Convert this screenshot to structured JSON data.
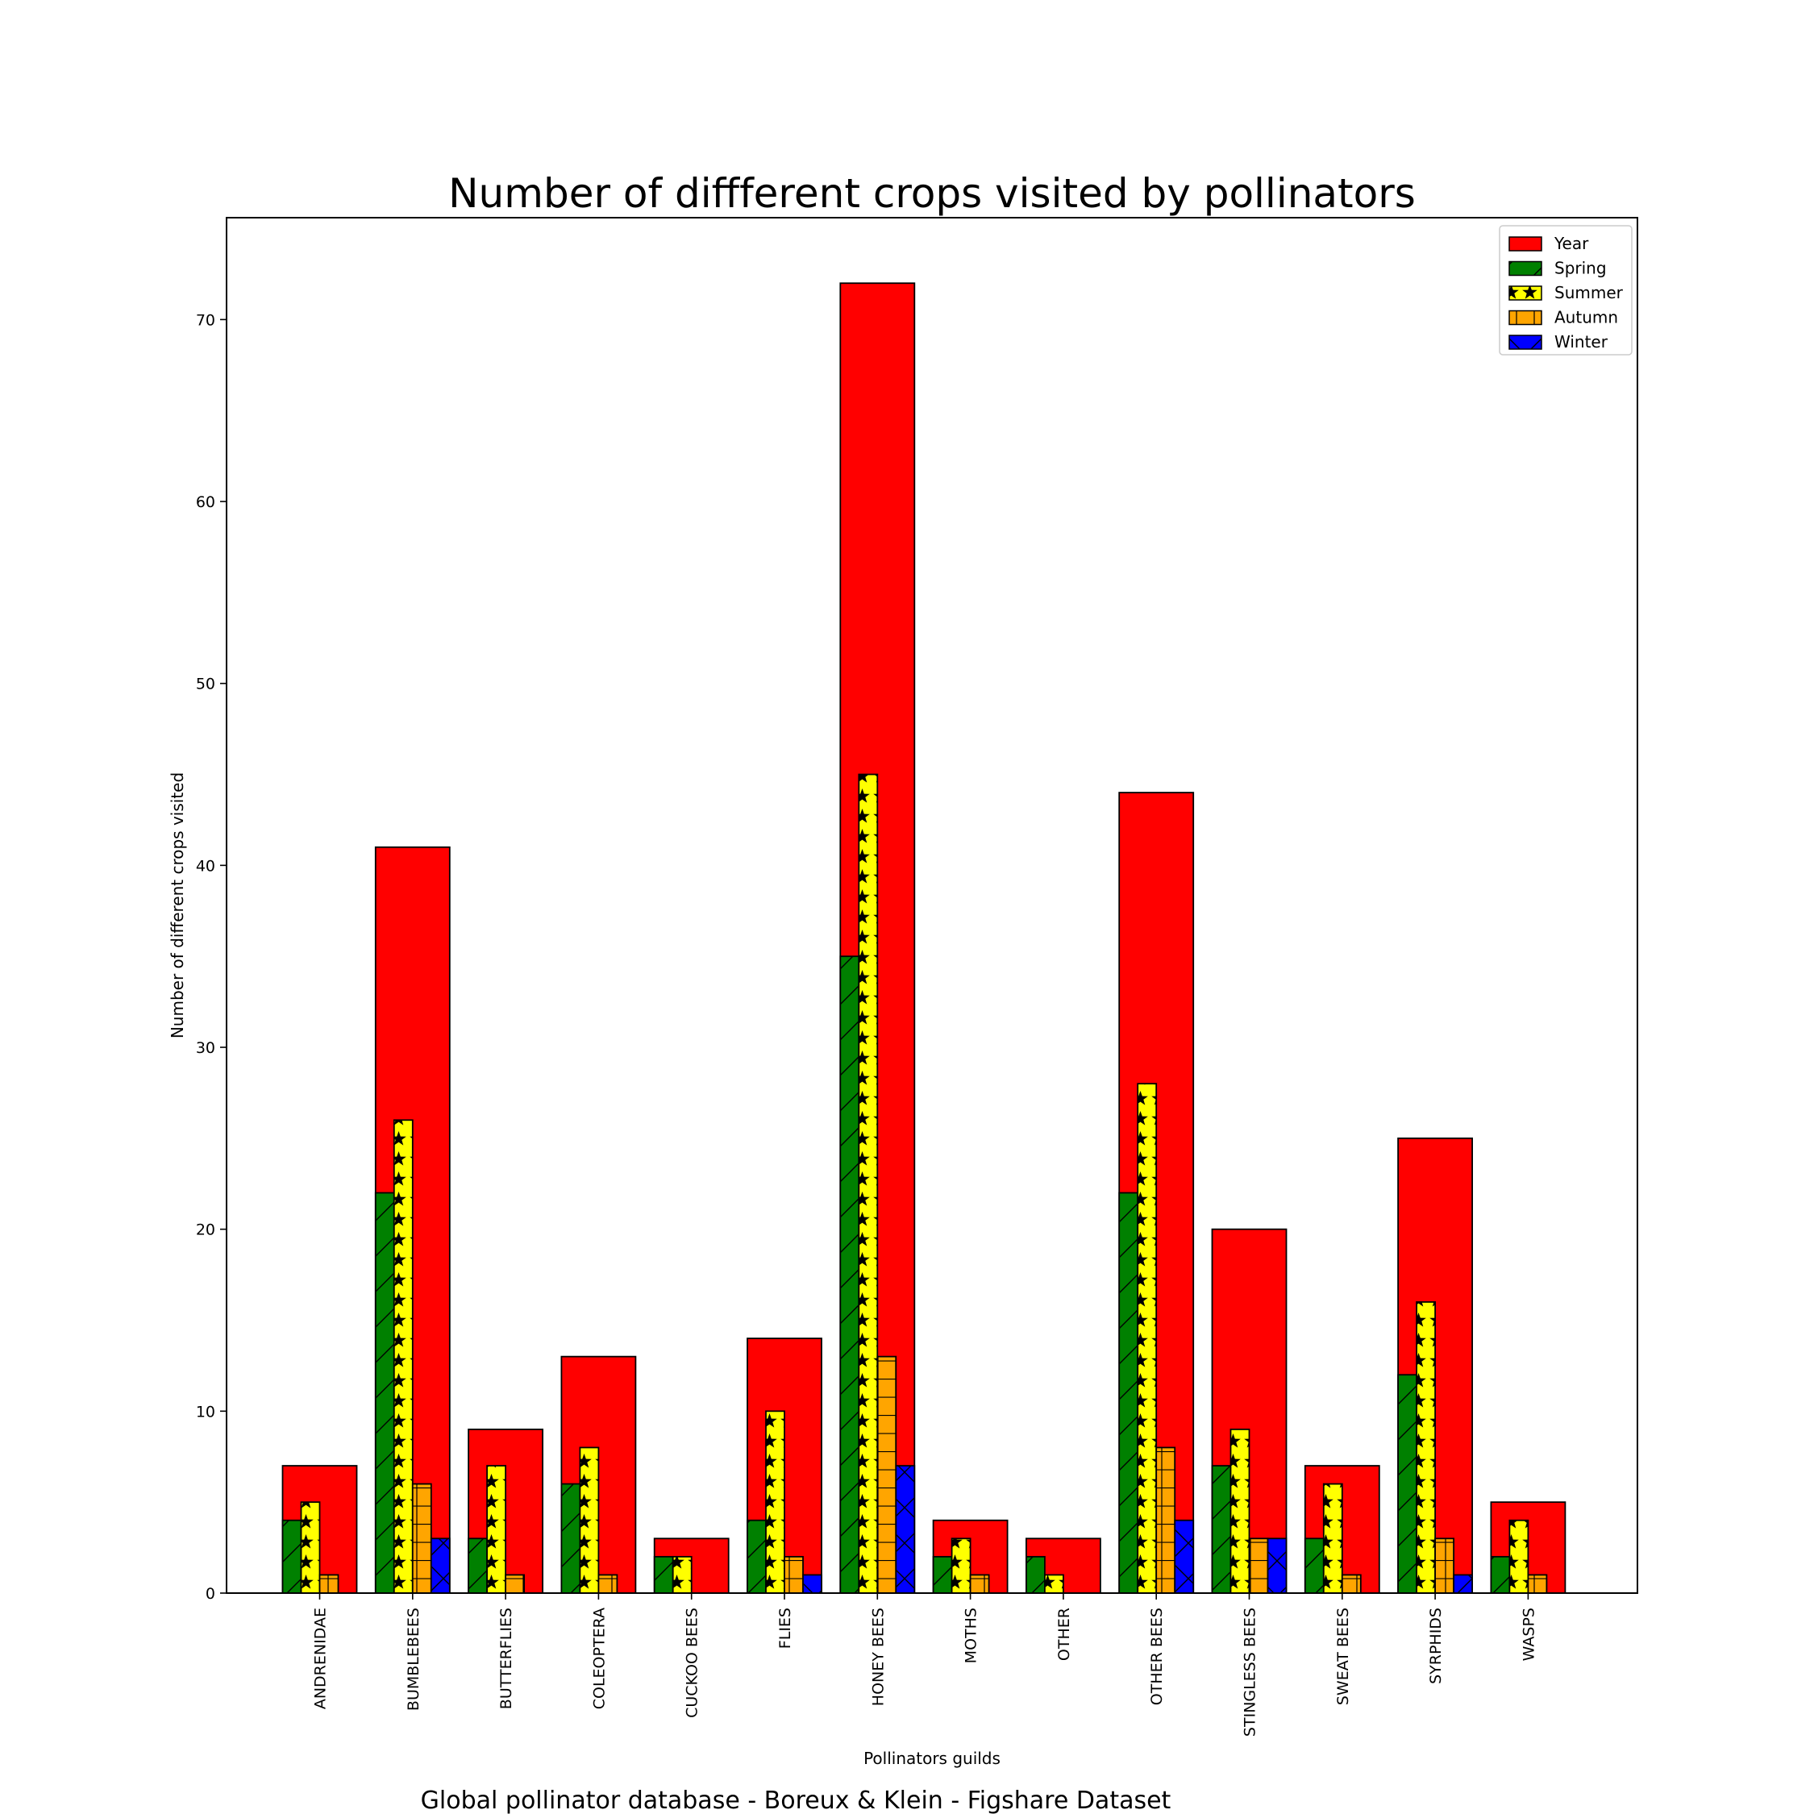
{
  "chart_data": {
    "type": "bar",
    "title": "Number of diffferent crops visited by pollinators",
    "xlabel": "Pollinators guilds",
    "ylabel": "Number of different crops visited",
    "footer": "Global pollinator database - Boreux & Klein - Figshare Dataset",
    "ylim": [
      0,
      75.6
    ],
    "yticks": [
      0,
      10,
      20,
      30,
      40,
      50,
      60,
      70
    ],
    "grid": false,
    "legend_position": "top-right",
    "categories": [
      "ANDRENIDAE",
      "BUMBLEBEES",
      "BUTTERFLIES",
      "COLEOPTERA",
      "CUCKOO BEES",
      "FLIES",
      "HONEY BEES",
      "MOTHS",
      "OTHER",
      "OTHER BEES",
      "STINGLESS BEES",
      "SWEAT BEES",
      "SYRPHIDS",
      "WASPS"
    ],
    "series": [
      {
        "name": "Year",
        "color": "#ff0000",
        "hatch": "none",
        "values": [
          7,
          41,
          9,
          13,
          3,
          14,
          72,
          4,
          3,
          44,
          20,
          7,
          25,
          5
        ]
      },
      {
        "name": "Spring",
        "color": "#008000",
        "hatch": "diagonal",
        "values": [
          4,
          22,
          3,
          6,
          2,
          4,
          35,
          2,
          2,
          22,
          7,
          3,
          12,
          2
        ]
      },
      {
        "name": "Summer",
        "color": "#ffff00",
        "hatch": "stars",
        "values": [
          5,
          26,
          7,
          8,
          2,
          10,
          45,
          3,
          1,
          28,
          9,
          6,
          16,
          4
        ]
      },
      {
        "name": "Autumn",
        "color": "#ffa500",
        "hatch": "grid",
        "values": [
          1,
          6,
          1,
          1,
          0,
          2,
          13,
          1,
          0,
          8,
          3,
          1,
          3,
          1
        ]
      },
      {
        "name": "Winter",
        "color": "#0000ff",
        "hatch": "cross",
        "values": [
          0,
          3,
          0,
          0,
          0,
          1,
          7,
          0,
          0,
          4,
          3,
          0,
          1,
          0
        ]
      }
    ]
  }
}
